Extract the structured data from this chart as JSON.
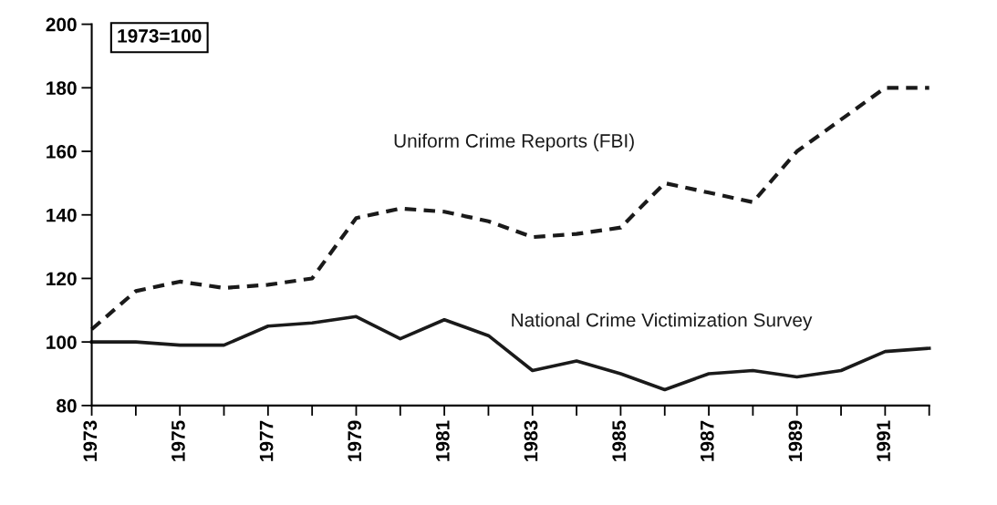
{
  "chart_data": {
    "type": "line",
    "x": [
      1973,
      1974,
      1975,
      1976,
      1977,
      1978,
      1979,
      1980,
      1981,
      1982,
      1983,
      1984,
      1985,
      1986,
      1987,
      1988,
      1989,
      1990,
      1991,
      1992
    ],
    "series": [
      {
        "name": "Uniform Crime Reports (FBI)",
        "color": "#1a1a1a",
        "line_style": "dashed",
        "values": [
          104,
          116,
          119,
          117,
          118,
          120,
          139,
          142,
          141,
          138,
          133,
          134,
          136,
          150,
          147,
          144,
          160,
          170,
          180,
          180
        ]
      },
      {
        "name": "National Crime Victimization Survey",
        "color": "#1a1a1a",
        "line_style": "solid",
        "values": [
          100,
          100,
          99,
          99,
          105,
          106,
          108,
          101,
          107,
          102,
          91,
          94,
          90,
          85,
          90,
          91,
          89,
          91,
          97,
          98
        ]
      }
    ],
    "xlim": [
      1973,
      1992
    ],
    "xticks": [
      1973,
      {
        "value": 1974,
        "label": null
      },
      1975,
      {
        "value": 1976,
        "label": null
      },
      1977,
      {
        "value": 1978,
        "label": null
      },
      1979,
      {
        "value": 1980,
        "label": null
      },
      1981,
      {
        "value": 1982,
        "label": null
      },
      1983,
      {
        "value": 1984,
        "label": null
      },
      1985,
      {
        "value": 1986,
        "label": null
      },
      1987,
      {
        "value": 1988,
        "label": null
      },
      1989,
      {
        "value": 1990,
        "label": null
      },
      1991,
      {
        "value": 1992,
        "label": null
      }
    ],
    "ylim": [
      80,
      200
    ],
    "yticks": [
      80,
      100,
      120,
      140,
      160,
      180,
      200
    ],
    "annotations": [
      "1973=100"
    ],
    "grid": false,
    "legend": false,
    "marker": "none"
  }
}
